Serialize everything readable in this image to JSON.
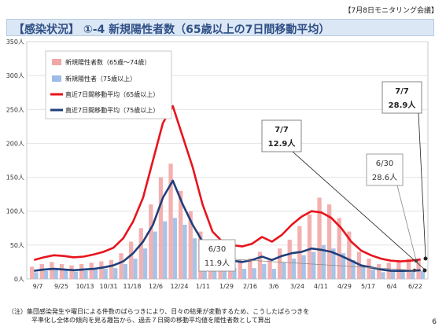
{
  "header": {
    "tag": "【7月8日モニタリング会議】"
  },
  "title": "【感染状況】 ①-4 新規陽性者数（65歳以上の7日間移動平均）",
  "footnote": {
    "line1": "（注）集団感染発生や曜日による件数のばらつきにより、日々の結果が変動するため、こうしたばらつきを",
    "line2": "平準化し全体の傾向を見る趣旨から、過去７日間の移動平均値を陽性者数として算出"
  },
  "page_number": "6",
  "colors": {
    "bar_65_74": "#f2a7a7",
    "bar_75plus": "#9dbde6",
    "line_65plus": "#e8141c",
    "line_75plus": "#1f3f7a",
    "title_text": "#2f4f86",
    "title_bg": "#dbe7f4"
  },
  "chart_data": {
    "type": "bar",
    "title": "",
    "xlabel": "",
    "ylabel": "",
    "ylim": [
      0,
      350
    ],
    "y_ticks": [
      "0人",
      "50人",
      "100人",
      "150人",
      "200人",
      "250人",
      "300人",
      "350人"
    ],
    "x_ticks": [
      "9/7",
      "9/25",
      "10/13",
      "10/31",
      "11/18",
      "12/6",
      "12/24",
      "1/11",
      "1/29",
      "2/16",
      "3/6",
      "3/24",
      "4/11",
      "4/29",
      "5/17",
      "6/4",
      "6/22"
    ],
    "legend_position": "top-left",
    "series": [
      {
        "name": "新規陽性者数（65歳～74歳）",
        "kind": "bar",
        "values": [
          18,
          22,
          25,
          22,
          20,
          22,
          24,
          26,
          28,
          38,
          55,
          75,
          110,
          150,
          170,
          130,
          100,
          70,
          40,
          32,
          30,
          28,
          30,
          40,
          30,
          45,
          58,
          78,
          95,
          120,
          110,
          90,
          70,
          40,
          30,
          22,
          24,
          26,
          30,
          28
        ]
      },
      {
        "name": "新規陽性者（75歳以上）",
        "kind": "bar",
        "values": [
          10,
          12,
          14,
          13,
          11,
          12,
          14,
          15,
          16,
          22,
          30,
          45,
          70,
          85,
          90,
          80,
          60,
          40,
          22,
          17,
          16,
          15,
          16,
          22,
          15,
          25,
          30,
          35,
          40,
          50,
          45,
          38,
          28,
          18,
          14,
          10,
          11,
          12,
          13,
          12
        ]
      },
      {
        "name": "直近7日間移動平均（65歳以上）",
        "kind": "line",
        "values": [
          28,
          32,
          35,
          34,
          32,
          33,
          36,
          40,
          46,
          60,
          85,
          120,
          175,
          230,
          255,
          210,
          165,
          110,
          70,
          55,
          50,
          48,
          52,
          62,
          55,
          65,
          80,
          92,
          100,
          98,
          90,
          75,
          55,
          42,
          35,
          30,
          27,
          26,
          27,
          28.9
        ]
      },
      {
        "name": "直近7日間移動平均（75歳以上）",
        "kind": "line",
        "values": [
          12,
          14,
          15,
          14,
          13,
          14,
          15,
          17,
          20,
          26,
          38,
          55,
          80,
          120,
          145,
          110,
          80,
          55,
          35,
          28,
          27,
          25,
          28,
          33,
          28,
          34,
          38,
          40,
          45,
          43,
          40,
          34,
          27,
          20,
          17,
          14,
          12,
          11.9,
          12.2,
          12.9
        ]
      }
    ],
    "annotations": [
      {
        "date": "7/7",
        "value": "28.9人",
        "series": "直近7日間移動平均（65歳以上）"
      },
      {
        "date": "7/7",
        "value": "12.9人",
        "series": "直近7日間移動平均（75歳以上）"
      },
      {
        "date": "6/30",
        "value": "28.6人",
        "series": "直近7日間移動平均（65歳以上）"
      },
      {
        "date": "6/30",
        "value": "11.9人",
        "series": "直近7日間移動平均（75歳以上）"
      }
    ]
  }
}
